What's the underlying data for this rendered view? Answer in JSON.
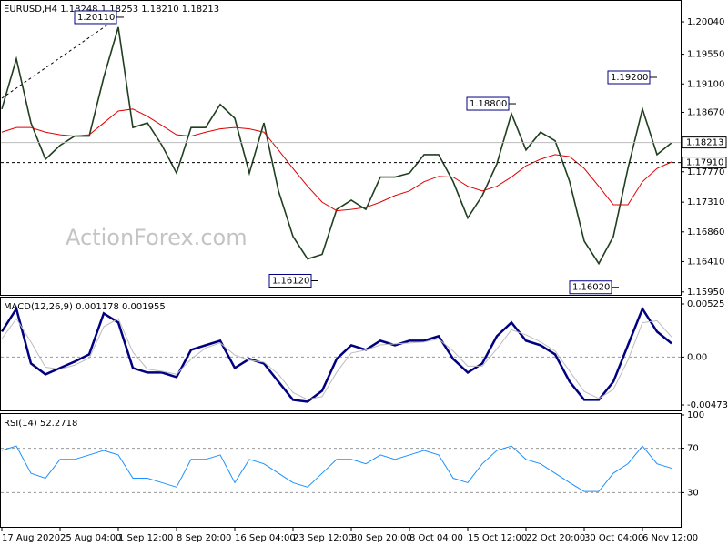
{
  "chart_data": [
    {
      "type": "line",
      "title": "EURUSD,H4 1.18248 1.18253 1.18210 1.18213",
      "watermark": "ActionForex.com",
      "categories": [
        "17 Aug 2020",
        null,
        null,
        null,
        "25 Aug 04:00",
        null,
        null,
        null,
        "1 Sep 12:00",
        null,
        null,
        null,
        "8 Sep 20:00",
        null,
        null,
        null,
        "16 Sep 04:00",
        null,
        null,
        null,
        "23 Sep 12:00",
        null,
        null,
        null,
        "30 Sep 20:00",
        null,
        null,
        null,
        "8 Oct 04:00",
        null,
        null,
        null,
        "15 Oct 12:00",
        null,
        null,
        null,
        "22 Oct 20:00",
        null,
        null,
        null,
        "30 Oct 04:00",
        null,
        null,
        null,
        "6 Nov 12:00",
        null,
        null
      ],
      "series": [
        {
          "color": "#1f3f1f",
          "values": [
            1.1872,
            1.1948,
            1.1851,
            1.1796,
            1.1817,
            1.1831,
            1.1831,
            1.192,
            1.1996,
            1.1844,
            1.1851,
            1.1817,
            1.1775,
            1.1844,
            1.1844,
            1.1879,
            1.1858,
            1.1775,
            1.1851,
            1.1748,
            1.1679,
            1.1645,
            1.1652,
            1.172,
            1.1734,
            1.172,
            1.1769,
            1.1769,
            1.1775,
            1.1803,
            1.1803,
            1.1762,
            1.1707,
            1.1741,
            1.1789,
            1.1865,
            1.181,
            1.1837,
            1.1824,
            1.1762,
            1.1672,
            1.1638,
            1.1679,
            1.1782,
            1.1872,
            1.1803,
            1.1821
          ]
        },
        {
          "color": "#e00000",
          "values": [
            1.1837,
            1.1844,
            1.1844,
            1.1837,
            1.1833,
            1.1831,
            1.1833,
            1.1851,
            1.1869,
            1.1872,
            1.1861,
            1.1847,
            1.1833,
            1.1831,
            1.1837,
            1.1842,
            1.1844,
            1.1842,
            1.1837,
            1.181,
            1.1782,
            1.1755,
            1.1731,
            1.1718,
            1.172,
            1.1723,
            1.1731,
            1.1741,
            1.1748,
            1.1762,
            1.177,
            1.1769,
            1.1755,
            1.1748,
            1.1755,
            1.1769,
            1.1786,
            1.1796,
            1.1803,
            1.18,
            1.1782,
            1.1755,
            1.1727,
            1.1727,
            1.1762,
            1.1782,
            1.1792
          ]
        }
      ],
      "ylim": [
        1.1592,
        1.2033
      ],
      "yticks": [
        {
          "value": 1.2004,
          "label": "1.20040"
        },
        {
          "value": 1.1955,
          "label": "1.19550"
        },
        {
          "value": 1.191,
          "label": "1.19100"
        },
        {
          "value": 1.1867,
          "label": "1.18670"
        },
        {
          "value": 1.1777,
          "label": "1.17770"
        },
        {
          "value": 1.1731,
          "label": "1.17310"
        },
        {
          "value": 1.1686,
          "label": "1.16860"
        },
        {
          "value": 1.1641,
          "label": "1.16410"
        },
        {
          "value": 1.1595,
          "label": "1.15950"
        }
      ],
      "current_price": 1.18213,
      "level": {
        "value": 1.1791,
        "label": "1.17910"
      },
      "annotations": [
        {
          "value": 1.2011,
          "label": "1.20110"
        },
        {
          "value": 1.188,
          "label": "1.18800"
        },
        {
          "value": 1.192,
          "label": "1.19200"
        },
        {
          "value": 1.1612,
          "label": "1.16120"
        },
        {
          "value": 1.1602,
          "label": "1.16020"
        }
      ]
    },
    {
      "type": "line",
      "title": "MACD(12,26,9) 0.001178 0.001955",
      "series": [
        {
          "color": "#000080",
          "values": [
            0.00252,
            0.00477,
            -0.00063,
            -0.00171,
            -0.00108,
            -0.00045,
            0.00027,
            0.00432,
            0.00342,
            -0.00108,
            -0.00153,
            -0.00153,
            -0.00198,
            0.00072,
            0.00117,
            0.00162,
            -0.00108,
            -0.00018,
            -0.00063,
            -0.00243,
            -0.00423,
            -0.00441,
            -0.00333,
            -0.00018,
            0.00117,
            0.00072,
            0.00162,
            0.00117,
            0.00162,
            0.00162,
            0.00207,
            -0.00018,
            -0.00153,
            -0.00063,
            0.00207,
            0.00342,
            0.00162,
            0.00117,
            0.00027,
            -0.00243,
            -0.00423,
            -0.00423,
            -0.00243,
            0.00117,
            0.00477,
            0.00252,
            0.00135
          ]
        },
        {
          "color": "#bdbdbd",
          "values": [
            0.0018,
            0.0038,
            0.0015,
            -0.001,
            -0.0012,
            -0.0008,
            -0.0001,
            0.003,
            0.0038,
            0.0005,
            -0.0012,
            -0.0014,
            -0.0017,
            -0.0002,
            0.0009,
            0.0014,
            0.0002,
            -0.0003,
            -0.0005,
            -0.0017,
            -0.0035,
            -0.0042,
            -0.0039,
            -0.0015,
            0.0004,
            0.0007,
            0.0012,
            0.0013,
            0.0014,
            0.0015,
            0.0018,
            0.0006,
            -0.0009,
            -0.0009,
            0.0008,
            0.0027,
            0.0022,
            0.0015,
            0.0006,
            -0.0014,
            -0.0034,
            -0.0041,
            -0.0032,
            -0.0003,
            0.0034,
            0.0036,
            0.002
          ]
        }
      ],
      "ylim": [
        -0.00518,
        0.00579
      ],
      "yticks": [
        0.00525,
        {
          "value": 0,
          "label": "0.00"
        },
        -0.004732
      ],
      "levels": [
        0
      ]
    },
    {
      "type": "line",
      "title": "RSI(14) 52.2718",
      "series": [
        {
          "color": "#1e90ff",
          "values": [
            68,
            72,
            47.5,
            43,
            60,
            60,
            64,
            68,
            64,
            43,
            43,
            39,
            35,
            60,
            60,
            64,
            39,
            60,
            56,
            47.5,
            39,
            35,
            47.5,
            60,
            60,
            56,
            64,
            60,
            64,
            68,
            64,
            43,
            39,
            56,
            68,
            72,
            60,
            56,
            47.5,
            39,
            31,
            31,
            47.5,
            56,
            72,
            56,
            52
          ]
        }
      ],
      "ylim": [
        0,
        100
      ],
      "yticks": [
        100,
        70,
        30
      ],
      "levels": [
        70,
        30
      ]
    }
  ]
}
